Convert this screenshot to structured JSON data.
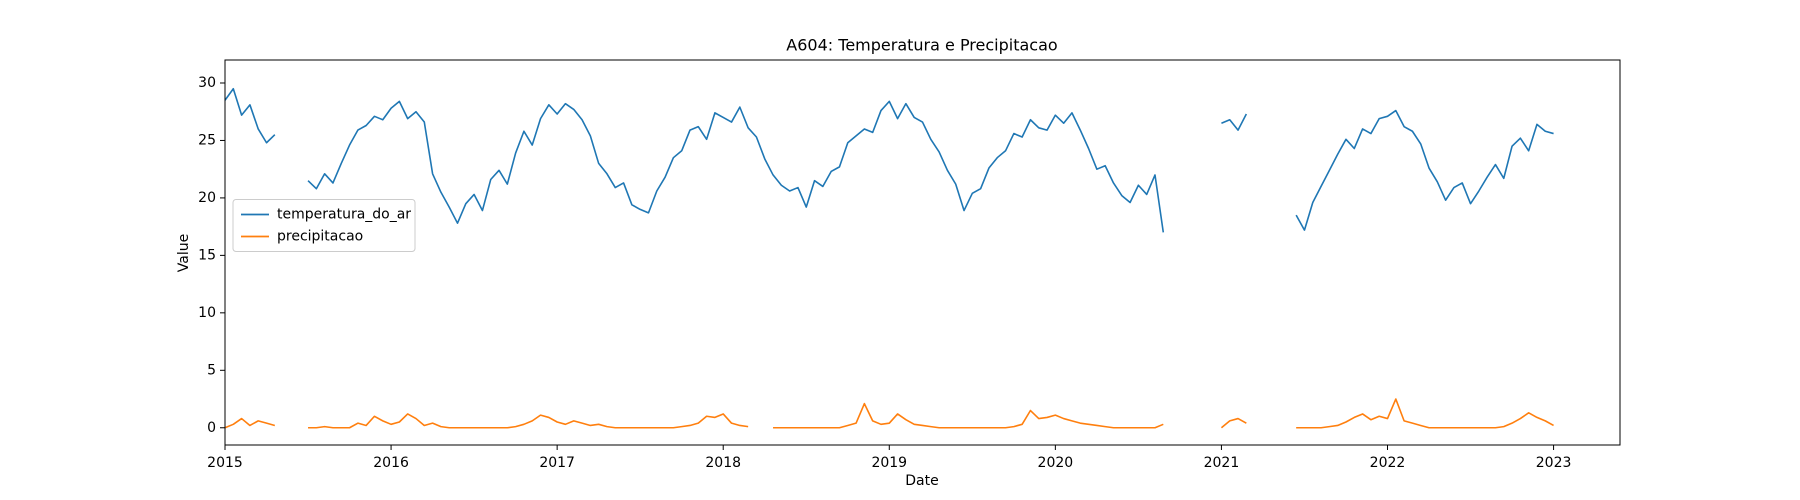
{
  "chart_data": {
    "type": "line",
    "title": "A604: Temperatura e Precipitacao",
    "x_label": "Date",
    "y_label": "Value",
    "xlim": [
      2015,
      2023.4
    ],
    "xticks": [
      2015,
      2016,
      2017,
      2018,
      2019,
      2020,
      2021,
      2022,
      2023
    ],
    "ylim": [
      -1.5,
      32
    ],
    "yticks": [
      0,
      5,
      10,
      15,
      20,
      25,
      30
    ],
    "grid": false,
    "legend": "center left",
    "x": [
      2015,
      2015.05,
      2015.1,
      2015.15,
      2015.2,
      2015.25,
      2015.3,
      2015.35,
      2015.4,
      2015.45,
      2015.5,
      2015.55,
      2015.6,
      2015.65,
      2015.7,
      2015.75,
      2015.8,
      2015.85,
      2015.9,
      2015.95,
      2016,
      2016.05,
      2016.1,
      2016.15,
      2016.2,
      2016.25,
      2016.3,
      2016.35,
      2016.4,
      2016.45,
      2016.5,
      2016.55,
      2016.6,
      2016.65,
      2016.7,
      2016.75,
      2016.8,
      2016.85,
      2016.9,
      2016.95,
      2017,
      2017.05,
      2017.1,
      2017.15,
      2017.2,
      2017.25,
      2017.3,
      2017.35,
      2017.4,
      2017.45,
      2017.5,
      2017.55,
      2017.6,
      2017.65,
      2017.7,
      2017.75,
      2017.8,
      2017.85,
      2017.9,
      2017.95,
      2018,
      2018.05,
      2018.1,
      2018.15,
      2018.2,
      2018.25,
      2018.3,
      2018.35,
      2018.4,
      2018.45,
      2018.5,
      2018.55,
      2018.6,
      2018.65,
      2018.7,
      2018.75,
      2018.8,
      2018.85,
      2018.9,
      2018.95,
      2019,
      2019.05,
      2019.1,
      2019.15,
      2019.2,
      2019.25,
      2019.3,
      2019.35,
      2019.4,
      2019.45,
      2019.5,
      2019.55,
      2019.6,
      2019.65,
      2019.7,
      2019.75,
      2019.8,
      2019.85,
      2019.9,
      2019.95,
      2020,
      2020.05,
      2020.1,
      2020.15,
      2020.2,
      2020.25,
      2020.3,
      2020.35,
      2020.4,
      2020.45,
      2020.5,
      2020.55,
      2020.6,
      2020.65,
      2020.7,
      2020.75,
      2020.8,
      2020.85,
      2020.9,
      2020.95,
      2021,
      2021.05,
      2021.1,
      2021.15,
      2021.2,
      2021.25,
      2021.3,
      2021.35,
      2021.4,
      2021.45,
      2021.5,
      2021.55,
      2021.6,
      2021.65,
      2021.7,
      2021.75,
      2021.8,
      2021.85,
      2021.9,
      2021.95,
      2022,
      2022.05,
      2022.1,
      2022.15,
      2022.2,
      2022.25,
      2022.3,
      2022.35,
      2022.4,
      2022.45,
      2022.5,
      2022.55,
      2022.6,
      2022.65,
      2022.7,
      2022.75,
      2022.8,
      2022.85,
      2022.9,
      2022.95,
      2023
    ],
    "series": [
      {
        "name": "temperatura_do_ar",
        "color": "#1f77b4",
        "values": [
          28.5,
          29.5,
          27.2,
          28.1,
          26.0,
          24.8,
          25.5,
          null,
          null,
          null,
          21.5,
          20.8,
          22.1,
          21.3,
          23.0,
          24.6,
          25.9,
          26.3,
          27.1,
          26.8,
          27.8,
          28.4,
          26.9,
          27.5,
          26.6,
          22.1,
          20.5,
          19.2,
          17.8,
          19.5,
          20.3,
          18.9,
          21.6,
          22.4,
          21.2,
          23.9,
          25.8,
          24.6,
          26.9,
          28.1,
          27.3,
          28.2,
          27.7,
          26.8,
          25.4,
          23.0,
          22.1,
          20.9,
          21.3,
          19.4,
          19.0,
          18.7,
          20.6,
          21.8,
          23.5,
          24.1,
          25.9,
          26.2,
          25.1,
          27.4,
          27.0,
          26.6,
          27.9,
          26.1,
          25.3,
          23.4,
          22.0,
          21.1,
          20.6,
          20.9,
          19.2,
          21.5,
          21.0,
          22.3,
          22.7,
          24.8,
          25.4,
          26.0,
          25.7,
          27.6,
          28.4,
          26.9,
          28.2,
          27.0,
          26.6,
          25.1,
          24.0,
          22.4,
          21.2,
          18.9,
          20.4,
          20.8,
          22.6,
          23.5,
          24.1,
          25.6,
          25.3,
          26.8,
          26.1,
          25.9,
          27.2,
          26.5,
          27.4,
          25.9,
          24.3,
          22.5,
          22.8,
          21.3,
          20.2,
          19.6,
          21.1,
          20.3,
          22.0,
          17.0,
          null,
          null,
          null,
          null,
          null,
          null,
          26.5,
          26.8,
          25.9,
          27.3,
          null,
          null,
          null,
          null,
          null,
          18.5,
          17.2,
          19.6,
          21.0,
          22.4,
          23.8,
          25.1,
          24.3,
          26.0,
          25.6,
          26.9,
          27.1,
          27.6,
          26.2,
          25.8,
          24.7,
          22.6,
          21.4,
          19.8,
          20.9,
          21.3,
          19.5,
          20.6,
          21.8,
          22.9,
          21.7,
          24.5,
          25.2,
          24.1,
          26.4,
          25.8,
          25.6
        ]
      },
      {
        "name": "precipitacao",
        "color": "#ff7f0e",
        "values": [
          0,
          0.3,
          0.8,
          0.2,
          0.6,
          0.4,
          0.2,
          null,
          null,
          null,
          0,
          0,
          0.1,
          0,
          0,
          0,
          0.4,
          0.2,
          1.0,
          0.6,
          0.3,
          0.5,
          1.2,
          0.8,
          0.2,
          0.4,
          0.1,
          0,
          0,
          0,
          0,
          0,
          0,
          0,
          0,
          0.1,
          0.3,
          0.6,
          1.1,
          0.9,
          0.5,
          0.3,
          0.6,
          0.4,
          0.2,
          0.3,
          0.1,
          0,
          0,
          0,
          0,
          0,
          0,
          0,
          0,
          0.1,
          0.2,
          0.4,
          1.0,
          0.9,
          1.2,
          0.4,
          0.2,
          0.1,
          null,
          null,
          0,
          0,
          0,
          0,
          0,
          0,
          0,
          0,
          0,
          0.2,
          0.4,
          2.1,
          0.6,
          0.3,
          0.4,
          1.2,
          0.7,
          0.3,
          0.2,
          0.1,
          0,
          0,
          0,
          0,
          0,
          0,
          0,
          0,
          0,
          0.1,
          0.3,
          1.5,
          0.8,
          0.9,
          1.1,
          0.8,
          0.6,
          0.4,
          0.3,
          0.2,
          0.1,
          0,
          0,
          0,
          0,
          0,
          0,
          0.3,
          null,
          null,
          null,
          null,
          null,
          null,
          0,
          0.6,
          0.8,
          0.4,
          null,
          null,
          null,
          null,
          null,
          0,
          0,
          0,
          0,
          0.1,
          0.2,
          0.5,
          0.9,
          1.2,
          0.7,
          1.0,
          0.8,
          2.5,
          0.6,
          0.4,
          0.2,
          0,
          0,
          0,
          0,
          0,
          0,
          0,
          0,
          0,
          0.1,
          0.4,
          0.8,
          1.3,
          0.9,
          0.6,
          0.2
        ]
      }
    ]
  }
}
